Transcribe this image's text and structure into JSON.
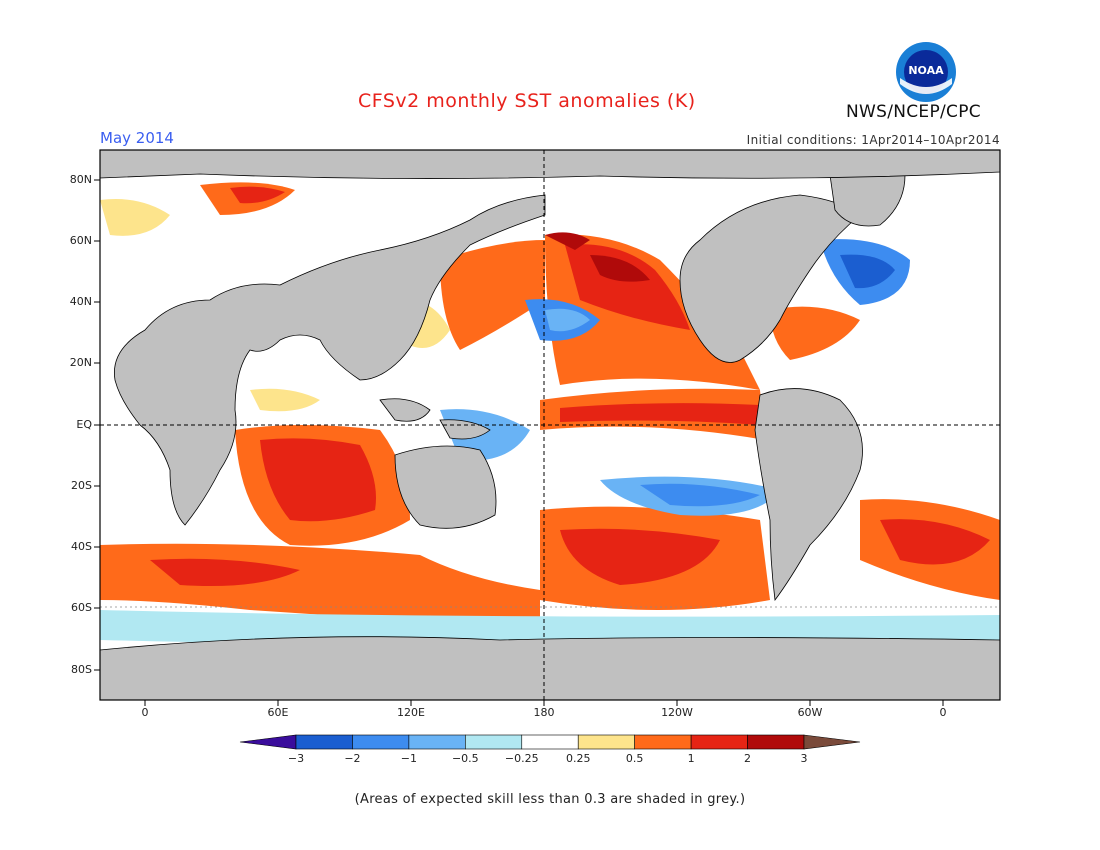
{
  "header": {
    "title": "CFSv2 monthly SST anomalies (K)",
    "month": "May 2014",
    "initial_conditions": "Initial conditions: 1Apr2014–10Apr2014",
    "agency": "NWS/NCEP/CPC",
    "logo_text": "NOAA"
  },
  "map": {
    "lat_labels": [
      "80N",
      "60N",
      "40N",
      "20N",
      "EQ",
      "20S",
      "40S",
      "60S",
      "80S"
    ],
    "lon_labels": [
      "0",
      "60E",
      "120E",
      "180",
      "120W",
      "60W",
      "0"
    ],
    "colors": {
      "land": "#c0c0c0",
      "unskilled": "#c0c0c0",
      "ocean_neutral": "#ffffff"
    }
  },
  "colorbar": {
    "labels": [
      "−3",
      "−2",
      "−1",
      "−0.5",
      "−0.25",
      "0.25",
      "0.5",
      "1",
      "2",
      "3"
    ],
    "colors": [
      "#3a0d9c",
      "#1b5ed0",
      "#3d8cf0",
      "#69b3f5",
      "#b1e8f2",
      "#ffffff",
      "#fde48c",
      "#ff6a1a",
      "#e62414",
      "#b00a0a",
      "#7a4a3a"
    ]
  },
  "footer": {
    "note": "(Areas of expected skill less than 0.3 are shaded in grey.)"
  }
}
